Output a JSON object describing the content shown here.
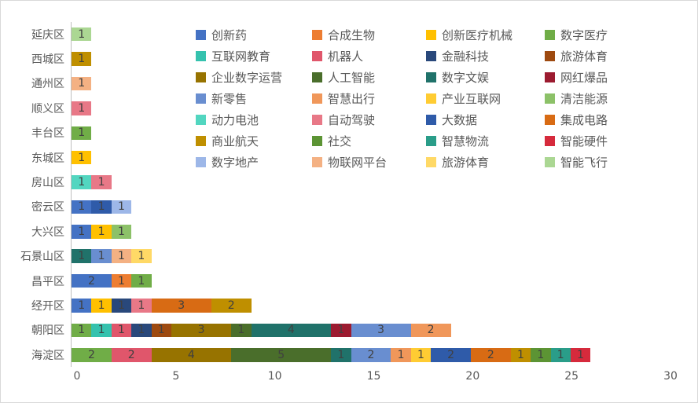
{
  "chart_data": {
    "type": "bar",
    "variant": "horizontal-stacked",
    "title": "",
    "xlabel": "",
    "ylabel": "",
    "x_axis": {
      "min": 0,
      "max": 30,
      "ticks": [
        0,
        5,
        10,
        15,
        20,
        25,
        30
      ]
    },
    "grid": "off",
    "legend_position": "top-right-overlay",
    "text_colors": {
      "axis_label": "#595959",
      "data_label": "#404040"
    },
    "axis_line_color": "#bfbfbf",
    "legend": [
      {
        "label": "创新药",
        "color": "#4472C4"
      },
      {
        "label": "合成生物",
        "color": "#ED7D31"
      },
      {
        "label": "创新医疗机械",
        "color": "#FFC000"
      },
      {
        "label": "数字医疗",
        "color": "#70AD47"
      },
      {
        "label": "互联网教育",
        "color": "#35C2AE"
      },
      {
        "label": "机器人",
        "color": "#E0566B"
      },
      {
        "label": "金融科技",
        "color": "#29487B"
      },
      {
        "label": "旅游体育",
        "color": "#9E4A10"
      },
      {
        "label": "企业数字运营",
        "color": "#977300"
      },
      {
        "label": "人工智能",
        "color": "#4A6E2B"
      },
      {
        "label": "数字文娱",
        "color": "#20726A"
      },
      {
        "label": "网红爆品",
        "color": "#9C1B30"
      },
      {
        "label": "新零售",
        "color": "#698ED0"
      },
      {
        "label": "智慧出行",
        "color": "#F0975A"
      },
      {
        "label": "产业互联网",
        "color": "#FFCC33"
      },
      {
        "label": "清洁能源",
        "color": "#8CC168"
      },
      {
        "label": "动力电池",
        "color": "#52D6C0"
      },
      {
        "label": "自动驾驶",
        "color": "#E87887"
      },
      {
        "label": "大数据",
        "color": "#2F5BA9"
      },
      {
        "label": "集成电路",
        "color": "#D86B14"
      },
      {
        "label": "商业航天",
        "color": "#BF8F00"
      },
      {
        "label": "社交",
        "color": "#5C9434"
      },
      {
        "label": "智慧物流",
        "color": "#2A9D89"
      },
      {
        "label": "智能硬件",
        "color": "#D62A3C"
      },
      {
        "label": "数字地产",
        "color": "#9DB7E8"
      },
      {
        "label": "物联网平台",
        "color": "#F4B183"
      },
      {
        "label": "旅游体育",
        "color": "#FFD966"
      },
      {
        "label": "智能飞行",
        "color": "#ABD793"
      }
    ],
    "rows": [
      {
        "category": "延庆区",
        "segments": [
          {
            "series": "智能飞行",
            "legend_index": 27,
            "value": 1
          }
        ]
      },
      {
        "category": "西城区",
        "segments": [
          {
            "series": "商业航天",
            "legend_index": 20,
            "value": 1
          }
        ]
      },
      {
        "category": "通州区",
        "segments": [
          {
            "series": "物联网平台",
            "legend_index": 25,
            "value": 1
          }
        ]
      },
      {
        "category": "顺义区",
        "segments": [
          {
            "series": "自动驾驶",
            "legend_index": 17,
            "value": 1
          }
        ]
      },
      {
        "category": "丰台区",
        "segments": [
          {
            "series": "数字医疗",
            "legend_index": 3,
            "value": 1
          }
        ]
      },
      {
        "category": "东城区",
        "segments": [
          {
            "series": "创新医疗机械",
            "legend_index": 2,
            "value": 1
          }
        ]
      },
      {
        "category": "房山区",
        "segments": [
          {
            "series": "动力电池",
            "legend_index": 16,
            "value": 1
          },
          {
            "series": "自动驾驶",
            "legend_index": 17,
            "value": 1
          }
        ]
      },
      {
        "category": "密云区",
        "segments": [
          {
            "series": "创新药",
            "legend_index": 0,
            "value": 1
          },
          {
            "series": "大数据",
            "legend_index": 18,
            "value": 1
          },
          {
            "series": "数字地产",
            "legend_index": 24,
            "value": 1
          }
        ]
      },
      {
        "category": "大兴区",
        "segments": [
          {
            "series": "创新药",
            "legend_index": 0,
            "value": 1
          },
          {
            "series": "创新医疗机械",
            "legend_index": 2,
            "value": 1
          },
          {
            "series": "清洁能源",
            "legend_index": 15,
            "value": 1
          }
        ]
      },
      {
        "category": "石景山区",
        "segments": [
          {
            "series": "数字文娱",
            "legend_index": 10,
            "value": 1
          },
          {
            "series": "新零售",
            "legend_index": 12,
            "value": 1
          },
          {
            "series": "物联网平台",
            "legend_index": 25,
            "value": 1
          },
          {
            "series": "旅游体育",
            "legend_index": 26,
            "value": 1
          }
        ]
      },
      {
        "category": "昌平区",
        "segments": [
          {
            "series": "创新药",
            "legend_index": 0,
            "value": 2
          },
          {
            "series": "合成生物",
            "legend_index": 1,
            "value": 1
          },
          {
            "series": "数字医疗",
            "legend_index": 3,
            "value": 1
          }
        ]
      },
      {
        "category": "经开区",
        "segments": [
          {
            "series": "创新药",
            "legend_index": 0,
            "value": 1
          },
          {
            "series": "创新医疗机械",
            "legend_index": 2,
            "value": 1
          },
          {
            "series": "金融科技",
            "legend_index": 6,
            "value": 1
          },
          {
            "series": "自动驾驶",
            "legend_index": 17,
            "value": 1
          },
          {
            "series": "集成电路",
            "legend_index": 19,
            "value": 3
          },
          {
            "series": "商业航天",
            "legend_index": 20,
            "value": 2
          }
        ]
      },
      {
        "category": "朝阳区",
        "segments": [
          {
            "series": "数字医疗",
            "legend_index": 3,
            "value": 1
          },
          {
            "series": "互联网教育",
            "legend_index": 4,
            "value": 1
          },
          {
            "series": "机器人",
            "legend_index": 5,
            "value": 1
          },
          {
            "series": "金融科技",
            "legend_index": 6,
            "value": 1
          },
          {
            "series": "旅游体育",
            "legend_index": 7,
            "value": 1
          },
          {
            "series": "企业数字运营",
            "legend_index": 8,
            "value": 3
          },
          {
            "series": "人工智能",
            "legend_index": 9,
            "value": 1
          },
          {
            "series": "数字文娱",
            "legend_index": 10,
            "value": 4
          },
          {
            "series": "网红爆品",
            "legend_index": 11,
            "value": 1
          },
          {
            "series": "新零售",
            "legend_index": 12,
            "value": 3
          },
          {
            "series": "智慧出行",
            "legend_index": 13,
            "value": 2
          }
        ]
      },
      {
        "category": "海淀区",
        "segments": [
          {
            "series": "数字医疗",
            "legend_index": 3,
            "value": 2
          },
          {
            "series": "机器人",
            "legend_index": 5,
            "value": 2
          },
          {
            "series": "企业数字运营",
            "legend_index": 8,
            "value": 4
          },
          {
            "series": "人工智能",
            "legend_index": 9,
            "value": 5
          },
          {
            "series": "数字文娱",
            "legend_index": 10,
            "value": 1
          },
          {
            "series": "新零售",
            "legend_index": 12,
            "value": 2
          },
          {
            "series": "智慧出行",
            "legend_index": 13,
            "value": 1
          },
          {
            "series": "产业互联网",
            "legend_index": 14,
            "value": 1
          },
          {
            "series": "大数据",
            "legend_index": 18,
            "value": 2
          },
          {
            "series": "集成电路",
            "legend_index": 19,
            "value": 2
          },
          {
            "series": "商业航天",
            "legend_index": 20,
            "value": 1
          },
          {
            "series": "社交",
            "legend_index": 21,
            "value": 1
          },
          {
            "series": "智慧物流",
            "legend_index": 22,
            "value": 1
          },
          {
            "series": "智能硬件",
            "legend_index": 23,
            "value": 1
          }
        ]
      }
    ]
  }
}
